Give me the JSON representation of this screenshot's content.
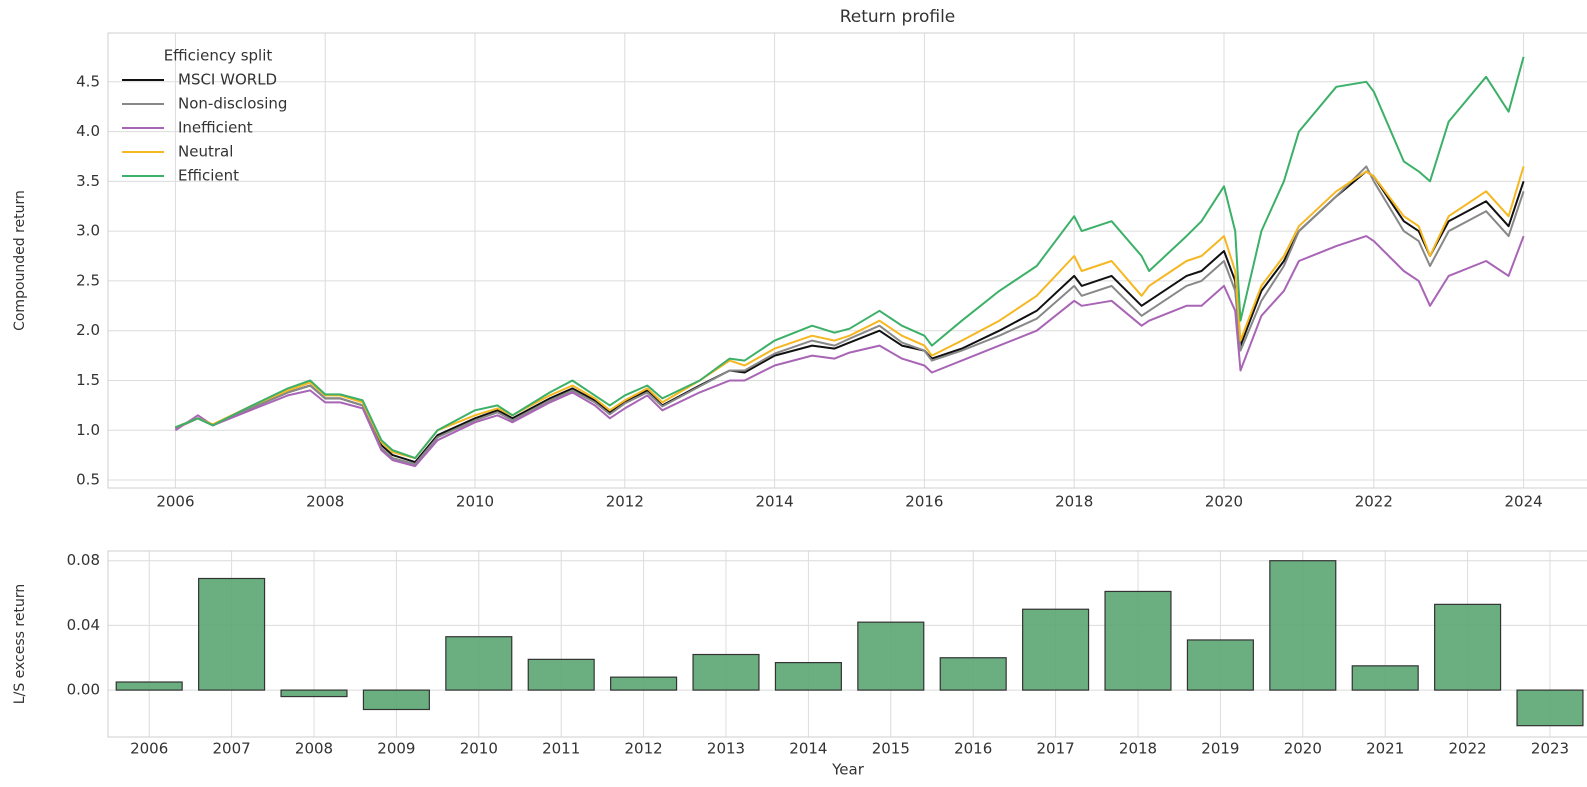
{
  "chart_data": [
    {
      "type": "line",
      "title": "Return profile",
      "y_label": "Compounded return",
      "legend_title": "Efficiency split",
      "legend": "upper left",
      "grid": true,
      "x": [
        2006.0,
        2006.3,
        2006.5,
        2007.0,
        2007.5,
        2007.8,
        2008.0,
        2008.2,
        2008.5,
        2008.75,
        2008.9,
        2009.2,
        2009.5,
        2010.0,
        2010.3,
        2010.5,
        2011.0,
        2011.3,
        2011.6,
        2011.8,
        2012.0,
        2012.3,
        2012.5,
        2013.0,
        2013.4,
        2013.6,
        2014.0,
        2014.5,
        2014.8,
        2015.0,
        2015.4,
        2015.7,
        2016.0,
        2016.1,
        2016.5,
        2017.0,
        2017.5,
        2018.0,
        2018.1,
        2018.5,
        2018.9,
        2019.0,
        2019.5,
        2019.7,
        2020.0,
        2020.15,
        2020.22,
        2020.5,
        2020.8,
        2021.0,
        2021.5,
        2021.9,
        2022.0,
        2022.4,
        2022.6,
        2022.75,
        2023.0,
        2023.5,
        2023.8,
        2024.0
      ],
      "series": [
        {
          "name": "MSCI WORLD",
          "color": "#111111",
          "values": [
            1.02,
            1.12,
            1.05,
            1.22,
            1.38,
            1.45,
            1.32,
            1.32,
            1.25,
            0.85,
            0.75,
            0.68,
            0.95,
            1.12,
            1.2,
            1.12,
            1.32,
            1.42,
            1.3,
            1.18,
            1.28,
            1.4,
            1.25,
            1.45,
            1.6,
            1.58,
            1.75,
            1.85,
            1.82,
            1.88,
            2.0,
            1.85,
            1.8,
            1.72,
            1.82,
            2.0,
            2.2,
            2.55,
            2.45,
            2.55,
            2.25,
            2.3,
            2.55,
            2.6,
            2.8,
            2.5,
            1.85,
            2.4,
            2.7,
            3.0,
            3.35,
            3.6,
            3.55,
            3.1,
            3.0,
            2.75,
            3.1,
            3.3,
            3.05,
            3.5
          ]
        },
        {
          "name": "Non-disclosing",
          "color": "#888888",
          "values": [
            1.02,
            1.12,
            1.05,
            1.22,
            1.38,
            1.45,
            1.32,
            1.32,
            1.25,
            0.82,
            0.72,
            0.66,
            0.93,
            1.1,
            1.18,
            1.1,
            1.3,
            1.4,
            1.28,
            1.16,
            1.27,
            1.38,
            1.24,
            1.44,
            1.6,
            1.6,
            1.77,
            1.9,
            1.85,
            1.92,
            2.05,
            1.88,
            1.8,
            1.7,
            1.8,
            1.95,
            2.12,
            2.45,
            2.35,
            2.45,
            2.15,
            2.2,
            2.45,
            2.5,
            2.7,
            2.4,
            1.8,
            2.3,
            2.65,
            3.0,
            3.35,
            3.65,
            3.5,
            3.0,
            2.9,
            2.65,
            3.0,
            3.2,
            2.95,
            3.4
          ]
        },
        {
          "name": "Inefficient",
          "color": "#a865b5",
          "values": [
            1.0,
            1.15,
            1.05,
            1.2,
            1.35,
            1.4,
            1.28,
            1.28,
            1.22,
            0.8,
            0.7,
            0.64,
            0.9,
            1.08,
            1.15,
            1.08,
            1.28,
            1.38,
            1.25,
            1.12,
            1.22,
            1.35,
            1.2,
            1.38,
            1.5,
            1.5,
            1.65,
            1.75,
            1.72,
            1.78,
            1.85,
            1.72,
            1.65,
            1.58,
            1.7,
            1.85,
            2.0,
            2.3,
            2.25,
            2.3,
            2.05,
            2.1,
            2.25,
            2.25,
            2.45,
            2.2,
            1.6,
            2.15,
            2.4,
            2.7,
            2.85,
            2.95,
            2.9,
            2.6,
            2.5,
            2.25,
            2.55,
            2.7,
            2.55,
            2.95
          ]
        },
        {
          "name": "Neutral",
          "color": "#f5b722",
          "values": [
            1.03,
            1.12,
            1.06,
            1.24,
            1.4,
            1.48,
            1.35,
            1.35,
            1.28,
            0.88,
            0.78,
            0.72,
            1.0,
            1.15,
            1.22,
            1.15,
            1.35,
            1.45,
            1.32,
            1.2,
            1.3,
            1.42,
            1.28,
            1.5,
            1.7,
            1.65,
            1.82,
            1.95,
            1.9,
            1.95,
            2.1,
            1.95,
            1.85,
            1.75,
            1.9,
            2.1,
            2.35,
            2.75,
            2.6,
            2.7,
            2.35,
            2.45,
            2.7,
            2.75,
            2.95,
            2.6,
            1.9,
            2.45,
            2.75,
            3.05,
            3.4,
            3.6,
            3.55,
            3.15,
            3.05,
            2.75,
            3.15,
            3.4,
            3.15,
            3.65
          ]
        },
        {
          "name": "Efficient",
          "color": "#3cb068",
          "values": [
            1.03,
            1.12,
            1.05,
            1.24,
            1.42,
            1.5,
            1.36,
            1.36,
            1.3,
            0.9,
            0.8,
            0.72,
            1.0,
            1.2,
            1.25,
            1.15,
            1.38,
            1.5,
            1.35,
            1.25,
            1.35,
            1.45,
            1.32,
            1.5,
            1.72,
            1.7,
            1.9,
            2.05,
            1.98,
            2.02,
            2.2,
            2.05,
            1.95,
            1.85,
            2.1,
            2.4,
            2.65,
            3.15,
            3.0,
            3.1,
            2.75,
            2.6,
            2.95,
            3.1,
            3.45,
            3.0,
            2.1,
            3.0,
            3.5,
            4.0,
            4.45,
            4.5,
            4.4,
            3.7,
            3.6,
            3.5,
            4.1,
            4.55,
            4.2,
            4.75
          ]
        }
      ],
      "xlim": [
        2005.1,
        2024.9
      ],
      "xticks": [
        2006,
        2008,
        2010,
        2012,
        2014,
        2016,
        2018,
        2020,
        2022,
        2024
      ],
      "ylim": [
        0.42,
        4.99
      ],
      "yticks": [
        0.5,
        {
          "value": 1,
          "label": "1.0"
        },
        1.5,
        {
          "value": 2,
          "label": "2.0"
        },
        2.5,
        {
          "value": 3,
          "label": "3.0"
        },
        3.5,
        {
          "value": 4,
          "label": "4.0"
        },
        4.5
      ]
    },
    {
      "type": "bar",
      "x_label": "Year",
      "y_label": "L/S excess return",
      "color": "#5ba673",
      "grid": true,
      "categories": [
        "2006",
        "2007",
        "2008",
        "2009",
        "2010",
        "2011",
        "2012",
        "2013",
        "2014",
        "2015",
        "2016",
        "2017",
        "2018",
        "2019",
        "2020",
        "2021",
        "2022",
        "2023"
      ],
      "values": [
        0.005,
        0.069,
        -0.004,
        -0.012,
        0.033,
        0.019,
        0.008,
        0.022,
        0.017,
        0.042,
        0.02,
        0.05,
        0.061,
        0.031,
        0.08,
        0.015,
        0.053,
        -0.022
      ],
      "ylim": [
        -0.029,
        0.086
      ],
      "yticks": [
        {
          "value": 0,
          "label": "0.00"
        },
        0.04,
        {
          "value": 0.08,
          "label": "0.08"
        }
      ]
    }
  ]
}
